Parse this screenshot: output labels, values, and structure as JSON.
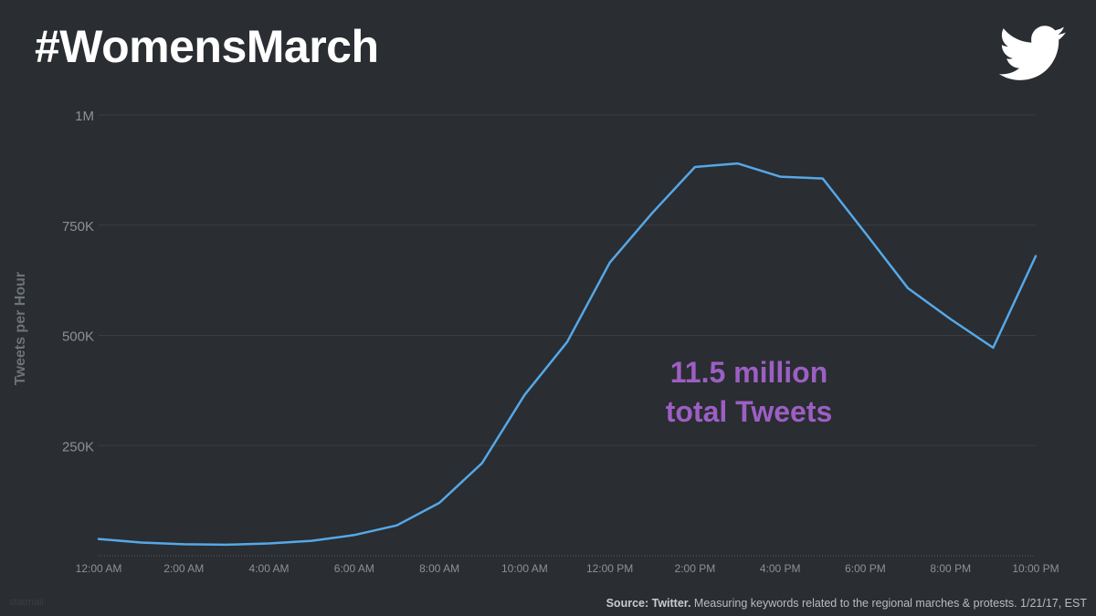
{
  "header": {
    "title": "#WomensMarch"
  },
  "footer": {
    "source_label": "Source: Twitter.",
    "source_text": " Measuring keywords related to the regional marches & protests. 1/21/17, EST",
    "watermark": "statmail"
  },
  "chart_data": {
    "type": "line",
    "title": "#WomensMarch",
    "xlabel": "",
    "ylabel": "Tweets per Hour",
    "ylim": [
      0,
      1000000
    ],
    "yticks": [
      250000,
      500000,
      750000,
      1000000
    ],
    "ytick_labels": [
      "250K",
      "500K",
      "750K",
      "1M"
    ],
    "xlim": [
      0,
      22
    ],
    "xticks": [
      0,
      2,
      4,
      6,
      8,
      10,
      12,
      14,
      16,
      18,
      20,
      22
    ],
    "xtick_labels": [
      "12:00 AM",
      "2:00 AM",
      "4:00 AM",
      "6:00 AM",
      "8:00 AM",
      "10:00 AM",
      "12:00 PM",
      "2:00 PM",
      "4:00 PM",
      "6:00 PM",
      "8:00 PM",
      "10:00 PM"
    ],
    "grid": true,
    "color": "#55a8e8",
    "series": [
      {
        "name": "Tweets per Hour",
        "x": [
          0,
          1,
          2,
          3,
          4,
          5,
          6,
          7,
          8,
          9,
          10,
          11,
          12,
          13,
          14,
          15,
          16,
          17,
          18,
          19,
          20,
          21,
          22
        ],
        "values": [
          38000,
          30000,
          26000,
          25000,
          28000,
          34000,
          47000,
          69000,
          120000,
          210000,
          365000,
          485000,
          665000,
          778000,
          882000,
          890000,
          860000,
          856000,
          732000,
          607000,
          537000,
          472000,
          680000
        ]
      }
    ],
    "annotation": {
      "line1": "11.5 million",
      "line2": "total Tweets",
      "color": "#9c5fc4"
    }
  }
}
